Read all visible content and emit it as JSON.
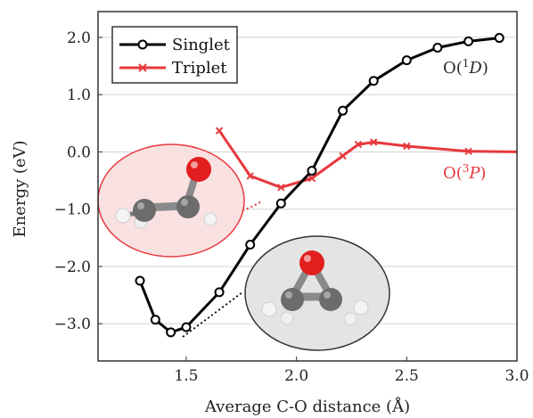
{
  "colors": {
    "singlet": "#000000",
    "triplet": "#e8383d",
    "grid": "#d2d2d2",
    "axis": "#333333"
  },
  "chart_data": {
    "type": "line",
    "xlabel": "Average C-O distance (Å)",
    "ylabel": "Energy (eV)",
    "xlim": [
      1.1,
      3.0
    ],
    "ylim": [
      -3.65,
      2.45
    ],
    "x_ticks": [
      1.5,
      2.0,
      2.5,
      3.0
    ],
    "x_tick_labels": [
      "1.5",
      "2.0",
      "2.5",
      "3.0"
    ],
    "y_ticks": [
      2.0,
      1.0,
      0.0,
      -1.0,
      -2.0,
      -3.0
    ],
    "y_tick_labels": [
      "2.0",
      "1.0",
      "0.0",
      "−1.0",
      "−2.0",
      "−3.0"
    ],
    "grid": "horizontal",
    "legend_position": "top-left",
    "series": [
      {
        "name": "Singlet",
        "color": "#000000",
        "marker": "circle",
        "x": [
          1.29,
          1.36,
          1.43,
          1.5,
          1.65,
          1.79,
          1.93,
          2.07,
          2.21,
          2.35,
          2.5,
          2.64,
          2.78,
          2.92
        ],
        "y": [
          -2.25,
          -2.93,
          -3.15,
          -3.06,
          -2.45,
          -1.62,
          -0.9,
          -0.33,
          0.72,
          1.24,
          1.6,
          1.82,
          1.93,
          1.99
        ]
      },
      {
        "name": "Triplet",
        "color": "#e8383d",
        "marker": "x",
        "x": [
          1.65,
          1.79,
          1.93,
          2.07,
          2.21,
          2.28,
          2.35,
          2.5,
          2.78,
          3.0
        ],
        "y": [
          0.37,
          -0.42,
          -0.62,
          -0.46,
          -0.07,
          0.13,
          0.17,
          0.1,
          0.01,
          0.0
        ]
      }
    ],
    "annotations": [
      {
        "text": "O(¹D)",
        "base": "O(",
        "sup": "1",
        "italic": "D",
        "close": ")",
        "color": "#2a2a2a"
      },
      {
        "text": "O(³P)",
        "base": "O(",
        "sup": "3",
        "italic": "P",
        "close": ")",
        "color": "#e8383d"
      }
    ]
  }
}
